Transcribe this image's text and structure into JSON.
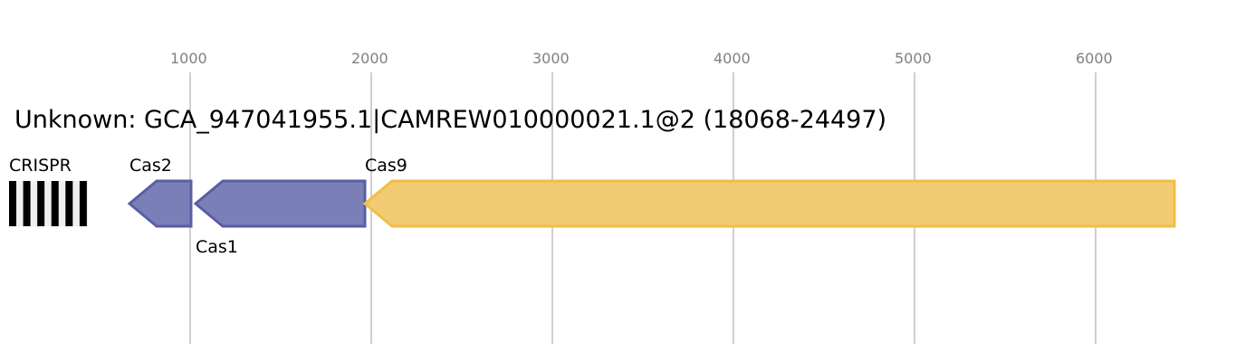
{
  "title": "Unknown: GCA_947041955.1|CAMREW010000021.1@2 (18068-24497)",
  "axis": {
    "ticks": [
      1000,
      2000,
      3000,
      4000,
      5000,
      6000
    ],
    "tick_color": "#808080",
    "grid_color": "#bfbfbf"
  },
  "crispr": {
    "label": "CRISPR",
    "start": 0,
    "end": 430,
    "repeats": 6,
    "color": "#000000",
    "spacer_color": "#f0f0f0"
  },
  "genes": [
    {
      "label": "Cas2",
      "start": 665,
      "end": 1005,
      "strand": "-",
      "fill": "#7b7fb8",
      "stroke": "#5a5ea5",
      "label_pos": "above"
    },
    {
      "label": "Cas1",
      "start": 1030,
      "end": 1965,
      "strand": "-",
      "fill": "#7b7fb8",
      "stroke": "#5a5ea5",
      "label_pos": "below"
    },
    {
      "label": "Cas9",
      "start": 1965,
      "end": 6435,
      "strand": "-",
      "fill": "#f2cc72",
      "stroke": "#f0be48",
      "label_pos": "above"
    }
  ]
}
